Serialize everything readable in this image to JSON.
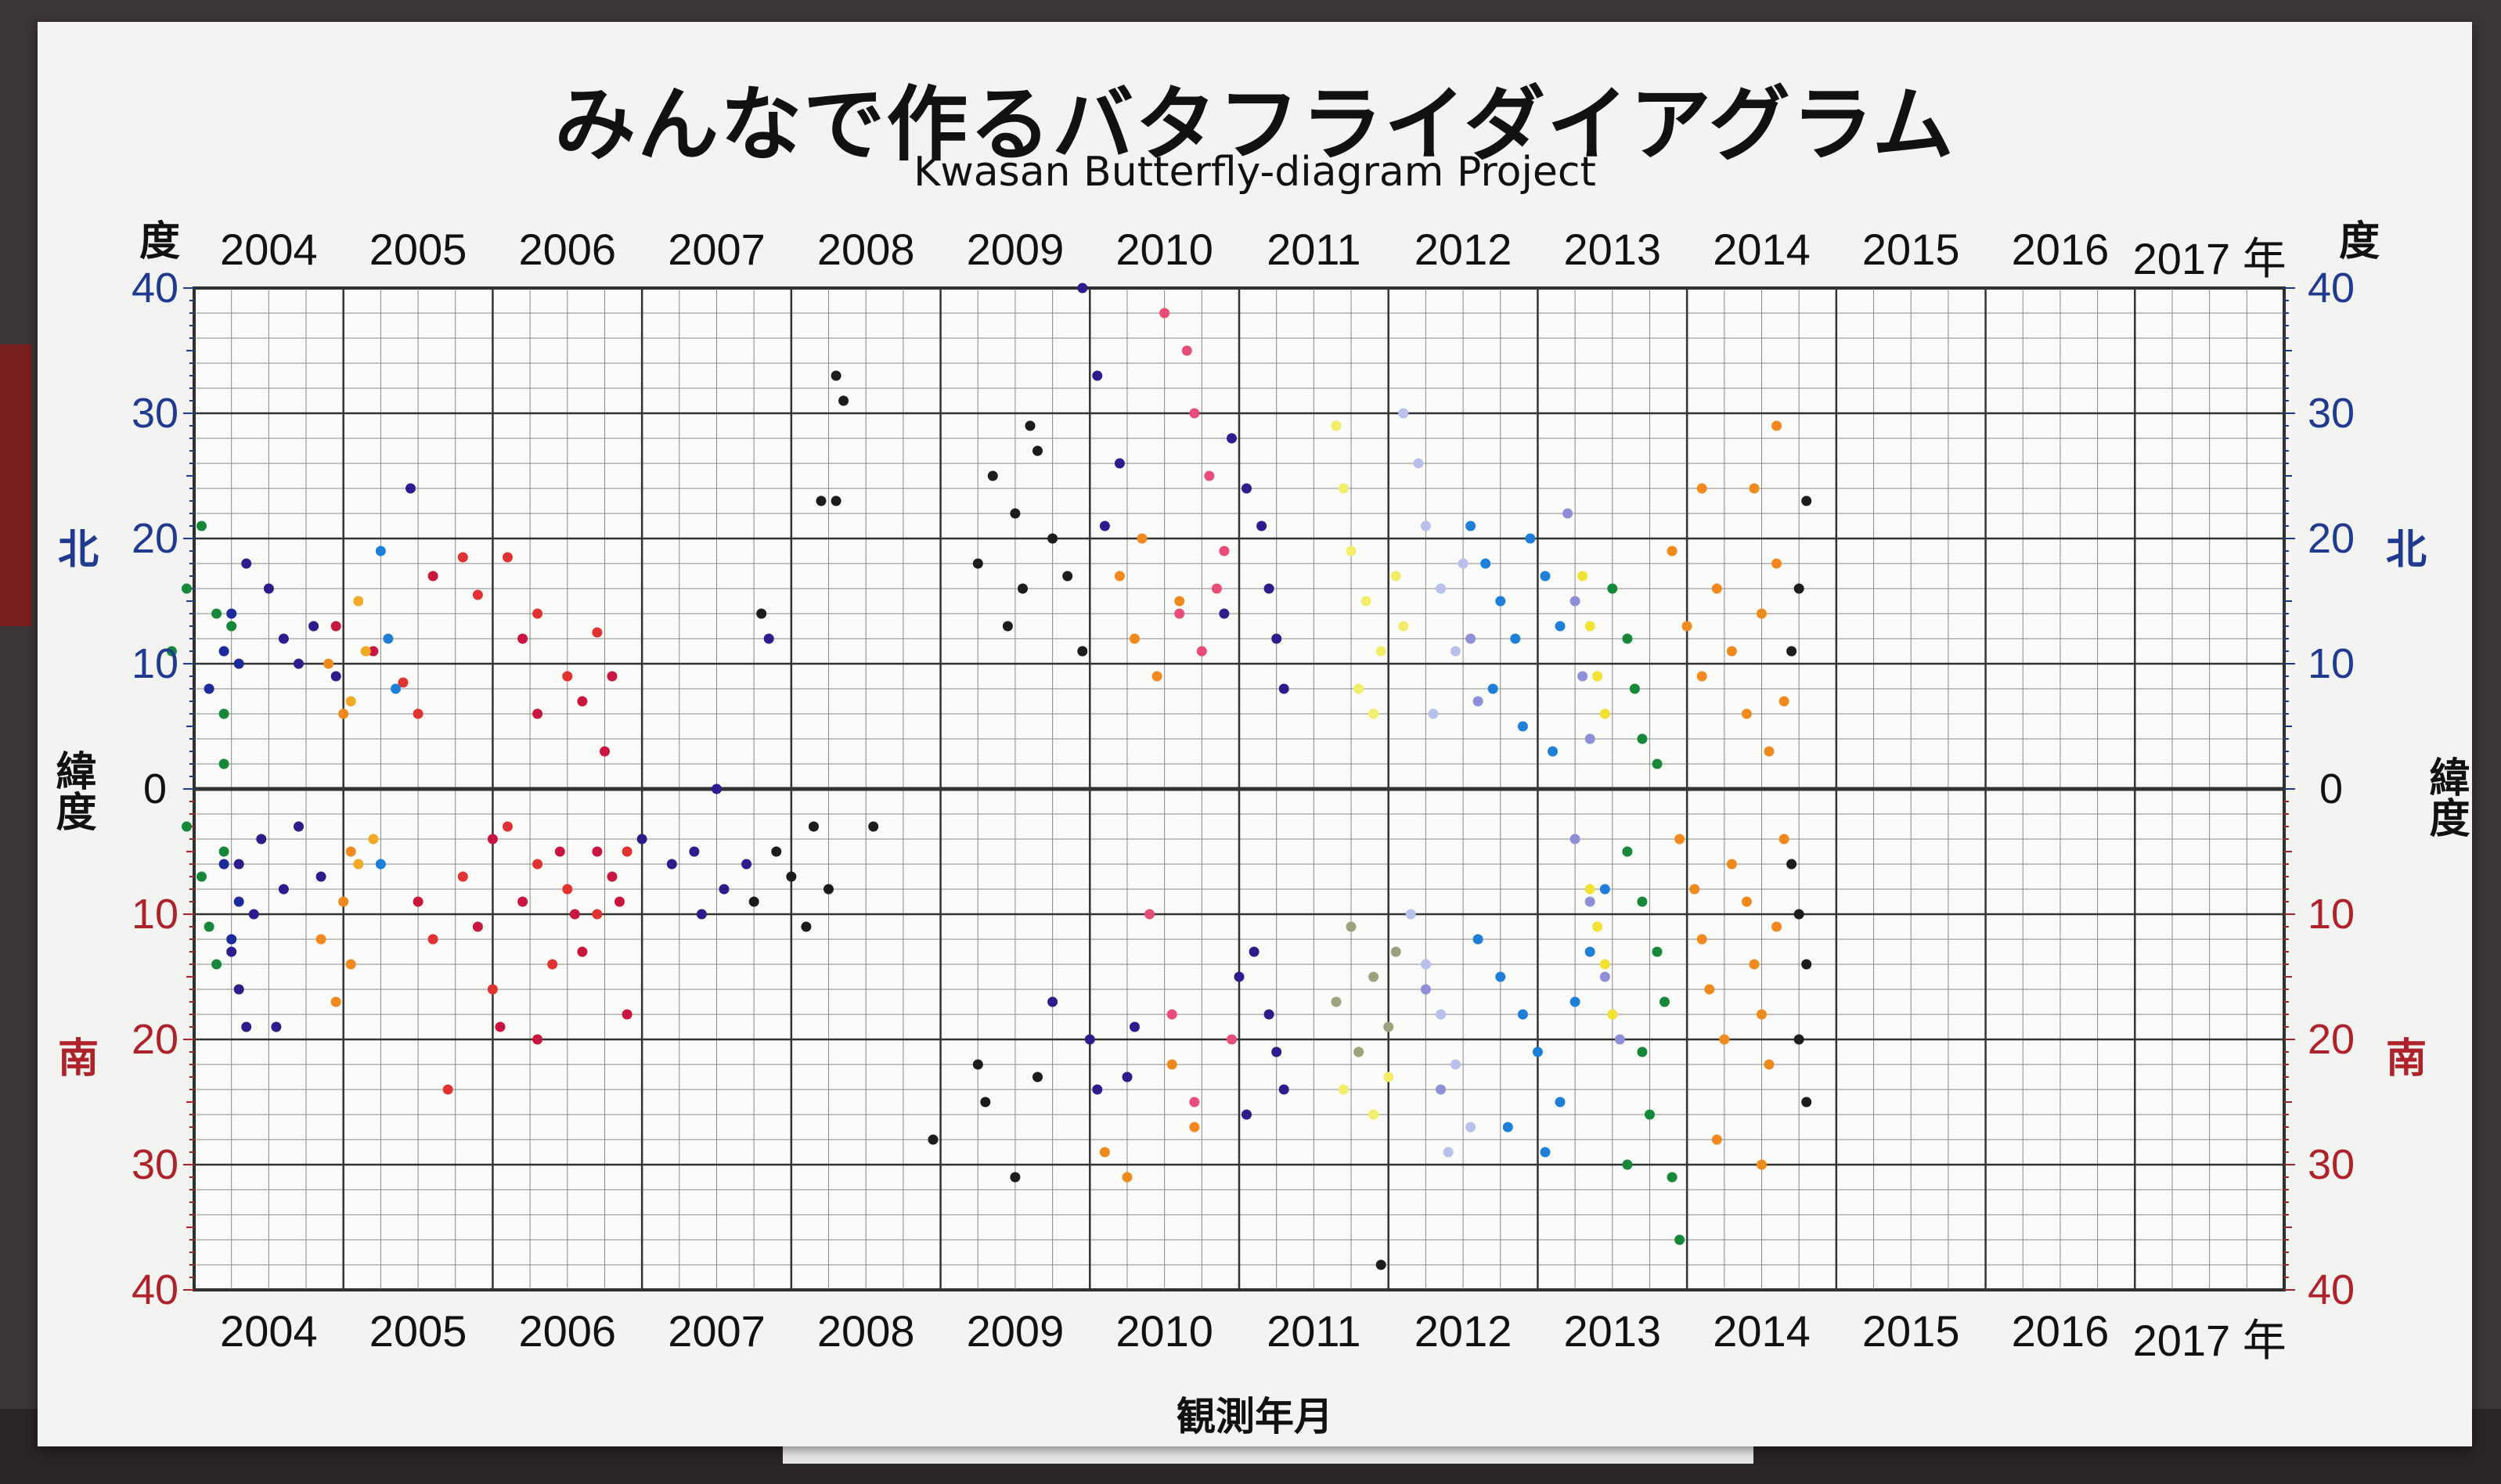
{
  "title_jp": "みんなで作るバタフライダイアグラム",
  "title_en": "Kwasan Butterfly-diagram Project",
  "top_year_labels": [
    "2004",
    "2005",
    "2006",
    "2007",
    "2008",
    "2009",
    "2010",
    "2011",
    "2012",
    "2013",
    "2014",
    "2015",
    "2016",
    "2017 年"
  ],
  "bottom_year_labels": [
    "2004",
    "2005",
    "2006",
    "2007",
    "2008",
    "2009",
    "2010",
    "2011",
    "2012",
    "2013",
    "2014",
    "2015",
    "2016",
    "2017 年"
  ],
  "degree_label": "度",
  "north_ticks": [
    "40",
    "30",
    "20",
    "10"
  ],
  "zero_tick": "0",
  "south_ticks": [
    "10",
    "20",
    "30",
    "40"
  ],
  "north_word": "北",
  "south_word": "南",
  "latitude_word": "緯度",
  "x_axis_title": "観測年月",
  "colors": {
    "north_axis": "#1f3a8f",
    "south_axis": "#b0222a",
    "board": "#f3f3f1",
    "grid": "#8a8a8a"
  },
  "chart_data": {
    "type": "scatter",
    "title": "みんなで作るバタフライダイアグラム",
    "subtitle": "Kwasan Butterfly-diagram Project",
    "xlabel": "観測年月",
    "ylabel": "緯度",
    "xlim": [
      2004,
      2018
    ],
    "ylim": [
      -40,
      40
    ],
    "grid": true,
    "series": [
      {
        "color": "#e0332f",
        "points": [
          [
            2005.4,
            8.5
          ],
          [
            2005.5,
            6
          ],
          [
            2005.8,
            18.5
          ],
          [
            2005.9,
            15.5
          ],
          [
            2006.1,
            18.5
          ],
          [
            2006.3,
            14
          ],
          [
            2006.5,
            9
          ],
          [
            2006.7,
            12.5
          ],
          [
            2006.1,
            -3
          ],
          [
            2006.3,
            -6
          ],
          [
            2006.5,
            -8
          ],
          [
            2006.7,
            -10
          ],
          [
            2006.9,
            -5
          ],
          [
            2005.6,
            -12
          ],
          [
            2005.8,
            -7
          ],
          [
            2006.0,
            -16
          ],
          [
            2005.7,
            -24
          ],
          [
            2006.4,
            -14
          ]
        ]
      },
      {
        "color": "#c8163e",
        "points": [
          [
            2004.95,
            13
          ],
          [
            2005.2,
            11
          ],
          [
            2005.6,
            17
          ],
          [
            2006.2,
            12
          ],
          [
            2006.3,
            6
          ],
          [
            2006.6,
            7
          ],
          [
            2006.75,
            3
          ],
          [
            2006.8,
            9
          ],
          [
            2006.0,
            -4
          ],
          [
            2006.2,
            -9
          ],
          [
            2006.45,
            -5
          ],
          [
            2006.6,
            -13
          ],
          [
            2006.8,
            -7
          ],
          [
            2006.85,
            -9
          ],
          [
            2005.5,
            -9
          ],
          [
            2005.9,
            -11
          ],
          [
            2006.05,
            -19
          ],
          [
            2006.55,
            -10
          ],
          [
            2006.7,
            -5
          ],
          [
            2006.9,
            -18
          ],
          [
            2006.3,
            -20
          ]
        ]
      },
      {
        "color": "#2b1d8c",
        "points": [
          [
            2004.35,
            18
          ],
          [
            2004.5,
            16
          ],
          [
            2004.6,
            12
          ],
          [
            2004.7,
            10
          ],
          [
            2004.8,
            13
          ],
          [
            2004.95,
            9
          ],
          [
            2004.3,
            -6
          ],
          [
            2004.45,
            -4
          ],
          [
            2004.6,
            -8
          ],
          [
            2004.7,
            -3
          ],
          [
            2004.85,
            -7
          ],
          [
            2004.25,
            -13
          ],
          [
            2004.3,
            -16
          ],
          [
            2004.35,
            -19
          ],
          [
            2004.55,
            -19
          ],
          [
            2004.4,
            -10
          ],
          [
            2005.45,
            24
          ],
          [
            2007.5,
            0
          ],
          [
            2007.0,
            -4
          ],
          [
            2007.2,
            -6
          ],
          [
            2007.35,
            -5
          ],
          [
            2007.55,
            -8
          ],
          [
            2007.7,
            -6
          ],
          [
            2007.4,
            -10
          ],
          [
            2007.85,
            12
          ],
          [
            2009.95,
            40
          ],
          [
            2010.05,
            33
          ],
          [
            2010.1,
            21
          ],
          [
            2010.2,
            26
          ],
          [
            2009.75,
            -17
          ],
          [
            2010.0,
            -20
          ],
          [
            2010.25,
            -23
          ],
          [
            2010.3,
            -19
          ],
          [
            2010.05,
            -24
          ],
          [
            2010.95,
            28
          ],
          [
            2011.05,
            24
          ],
          [
            2011.15,
            21
          ],
          [
            2011.2,
            16
          ],
          [
            2011.25,
            12
          ],
          [
            2011.3,
            8
          ],
          [
            2010.9,
            14
          ],
          [
            2011.0,
            -15
          ],
          [
            2011.1,
            -13
          ],
          [
            2011.2,
            -18
          ],
          [
            2011.25,
            -21
          ],
          [
            2011.3,
            -24
          ],
          [
            2011.05,
            -26
          ]
        ]
      },
      {
        "color": "#1c2a9e",
        "points": [
          [
            2004.1,
            8
          ],
          [
            2004.2,
            11
          ],
          [
            2004.25,
            14
          ],
          [
            2004.3,
            10
          ],
          [
            2004.2,
            -6
          ],
          [
            2004.3,
            -9
          ],
          [
            2004.25,
            -12
          ]
        ]
      },
      {
        "color": "#15883a",
        "points": [
          [
            2003.85,
            11
          ],
          [
            2003.95,
            16
          ],
          [
            2004.05,
            21
          ],
          [
            2004.15,
            14
          ],
          [
            2004.2,
            6
          ],
          [
            2004.25,
            13
          ],
          [
            2003.95,
            -3
          ],
          [
            2004.05,
            -7
          ],
          [
            2004.1,
            -11
          ],
          [
            2004.15,
            -14
          ],
          [
            2004.2,
            -5
          ],
          [
            2004.2,
            2
          ],
          [
            2013.5,
            16
          ],
          [
            2013.6,
            12
          ],
          [
            2013.65,
            8
          ],
          [
            2013.7,
            4
          ],
          [
            2013.8,
            2
          ],
          [
            2013.6,
            -5
          ],
          [
            2013.7,
            -9
          ],
          [
            2013.8,
            -13
          ],
          [
            2013.85,
            -17
          ],
          [
            2013.7,
            -21
          ],
          [
            2013.75,
            -26
          ],
          [
            2013.9,
            -31
          ],
          [
            2013.95,
            -36
          ],
          [
            2013.6,
            -30
          ]
        ]
      },
      {
        "color": "#f08a1e",
        "points": [
          [
            2004.85,
            -12
          ],
          [
            2004.95,
            -17
          ],
          [
            2005.0,
            -9
          ],
          [
            2005.05,
            -14
          ],
          [
            2004.9,
            10
          ],
          [
            2005.0,
            6
          ],
          [
            2005.05,
            -5
          ],
          [
            2010.2,
            17
          ],
          [
            2010.3,
            12
          ],
          [
            2010.35,
            20
          ],
          [
            2010.45,
            9
          ],
          [
            2010.6,
            15
          ],
          [
            2010.1,
            -29
          ],
          [
            2010.25,
            -31
          ],
          [
            2010.55,
            -22
          ],
          [
            2010.7,
            -27
          ],
          [
            2013.9,
            19
          ],
          [
            2014.0,
            13
          ],
          [
            2014.1,
            9
          ],
          [
            2014.2,
            16
          ],
          [
            2014.3,
            11
          ],
          [
            2014.4,
            6
          ],
          [
            2014.5,
            14
          ],
          [
            2014.55,
            3
          ],
          [
            2014.6,
            18
          ],
          [
            2014.65,
            7
          ],
          [
            2013.95,
            -4
          ],
          [
            2014.05,
            -8
          ],
          [
            2014.1,
            -12
          ],
          [
            2014.15,
            -16
          ],
          [
            2014.25,
            -20
          ],
          [
            2014.3,
            -6
          ],
          [
            2014.4,
            -9
          ],
          [
            2014.45,
            -14
          ],
          [
            2014.5,
            -18
          ],
          [
            2014.55,
            -22
          ],
          [
            2014.6,
            -11
          ],
          [
            2014.65,
            -4
          ],
          [
            2014.2,
            -28
          ],
          [
            2014.5,
            -30
          ],
          [
            2014.6,
            29
          ],
          [
            2014.1,
            24
          ],
          [
            2014.45,
            24
          ]
        ]
      },
      {
        "color": "#f0aa25",
        "points": [
          [
            2005.1,
            15
          ],
          [
            2005.15,
            11
          ],
          [
            2005.05,
            7
          ],
          [
            2005.1,
            -6
          ],
          [
            2005.2,
            -4
          ]
        ]
      },
      {
        "color": "#1f7fd6",
        "points": [
          [
            2005.25,
            19
          ],
          [
            2005.3,
            12
          ],
          [
            2005.35,
            8
          ],
          [
            2005.25,
            -6
          ],
          [
            2012.55,
            21
          ],
          [
            2012.65,
            18
          ],
          [
            2012.75,
            15
          ],
          [
            2012.85,
            12
          ],
          [
            2012.95,
            20
          ],
          [
            2013.05,
            17
          ],
          [
            2013.15,
            13
          ],
          [
            2012.7,
            8
          ],
          [
            2012.9,
            5
          ],
          [
            2013.1,
            3
          ],
          [
            2012.6,
            -12
          ],
          [
            2012.75,
            -15
          ],
          [
            2012.9,
            -18
          ],
          [
            2013.0,
            -21
          ],
          [
            2013.15,
            -25
          ],
          [
            2013.25,
            -17
          ],
          [
            2013.35,
            -13
          ],
          [
            2013.45,
            -8
          ],
          [
            2012.8,
            -27
          ],
          [
            2013.05,
            -29
          ]
        ]
      },
      {
        "color": "#e84d77",
        "points": [
          [
            2010.5,
            38
          ],
          [
            2010.65,
            35
          ],
          [
            2010.7,
            30
          ],
          [
            2010.8,
            25
          ],
          [
            2010.9,
            19
          ],
          [
            2010.6,
            14
          ],
          [
            2010.75,
            11
          ],
          [
            2010.85,
            16
          ],
          [
            2010.4,
            -10
          ],
          [
            2010.55,
            -18
          ],
          [
            2010.7,
            -25
          ],
          [
            2010.95,
            -20
          ]
        ]
      },
      {
        "color": "#1c1c1c",
        "points": [
          [
            2008.3,
            33
          ],
          [
            2008.35,
            31
          ],
          [
            2008.2,
            23
          ],
          [
            2008.3,
            23
          ],
          [
            2007.8,
            14
          ],
          [
            2009.35,
            25
          ],
          [
            2009.25,
            18
          ],
          [
            2009.6,
            29
          ],
          [
            2009.65,
            27
          ],
          [
            2009.5,
            22
          ],
          [
            2009.55,
            16
          ],
          [
            2009.45,
            13
          ],
          [
            2009.75,
            20
          ],
          [
            2009.85,
            17
          ],
          [
            2009.95,
            11
          ],
          [
            2007.9,
            -5
          ],
          [
            2008.0,
            -7
          ],
          [
            2008.15,
            -3
          ],
          [
            2008.1,
            -11
          ],
          [
            2007.75,
            -9
          ],
          [
            2008.25,
            -8
          ],
          [
            2008.55,
            -3
          ],
          [
            2008.95,
            -28
          ],
          [
            2009.25,
            -22
          ],
          [
            2009.3,
            -25
          ],
          [
            2009.5,
            -31
          ],
          [
            2009.65,
            -23
          ],
          [
            2014.7,
            -6
          ],
          [
            2014.75,
            -10
          ],
          [
            2014.8,
            -14
          ],
          [
            2014.75,
            -20
          ],
          [
            2014.8,
            -25
          ],
          [
            2014.75,
            16
          ],
          [
            2014.8,
            23
          ],
          [
            2014.7,
            11
          ],
          [
            2011.95,
            -38
          ]
        ]
      },
      {
        "color": "#f2ee6a",
        "points": [
          [
            2011.65,
            29
          ],
          [
            2011.7,
            24
          ],
          [
            2011.75,
            19
          ],
          [
            2011.85,
            15
          ],
          [
            2011.95,
            11
          ],
          [
            2012.05,
            17
          ],
          [
            2012.1,
            13
          ],
          [
            2011.8,
            8
          ],
          [
            2011.9,
            6
          ],
          [
            2011.7,
            -24
          ],
          [
            2011.8,
            -21
          ],
          [
            2011.9,
            -26
          ],
          [
            2012.0,
            -23
          ]
        ]
      },
      {
        "color": "#f2e234",
        "points": [
          [
            2013.3,
            17
          ],
          [
            2013.35,
            13
          ],
          [
            2013.4,
            9
          ],
          [
            2013.45,
            6
          ],
          [
            2013.35,
            -8
          ],
          [
            2013.4,
            -11
          ],
          [
            2013.45,
            -14
          ],
          [
            2013.5,
            -18
          ]
        ]
      },
      {
        "color": "#b9c0ec",
        "points": [
          [
            2012.1,
            30
          ],
          [
            2012.2,
            26
          ],
          [
            2012.25,
            21
          ],
          [
            2012.35,
            16
          ],
          [
            2012.45,
            11
          ],
          [
            2012.3,
            6
          ],
          [
            2012.5,
            18
          ],
          [
            2012.15,
            -10
          ],
          [
            2012.25,
            -14
          ],
          [
            2012.35,
            -18
          ],
          [
            2012.45,
            -22
          ],
          [
            2012.55,
            -27
          ],
          [
            2012.4,
            -29
          ]
        ]
      },
      {
        "color": "#8e8fd6",
        "points": [
          [
            2012.55,
            12
          ],
          [
            2012.6,
            7
          ],
          [
            2013.2,
            22
          ],
          [
            2013.25,
            15
          ],
          [
            2013.3,
            9
          ],
          [
            2013.35,
            4
          ],
          [
            2013.25,
            -4
          ],
          [
            2013.35,
            -9
          ],
          [
            2013.45,
            -15
          ],
          [
            2013.55,
            -20
          ],
          [
            2012.25,
            -16
          ],
          [
            2012.35,
            -24
          ]
        ]
      },
      {
        "color": "#9da27d",
        "points": [
          [
            2011.65,
            -17
          ],
          [
            2011.8,
            -21
          ],
          [
            2011.9,
            -15
          ],
          [
            2012.0,
            -19
          ],
          [
            2012.05,
            -13
          ],
          [
            2011.75,
            -11
          ]
        ]
      }
    ]
  }
}
